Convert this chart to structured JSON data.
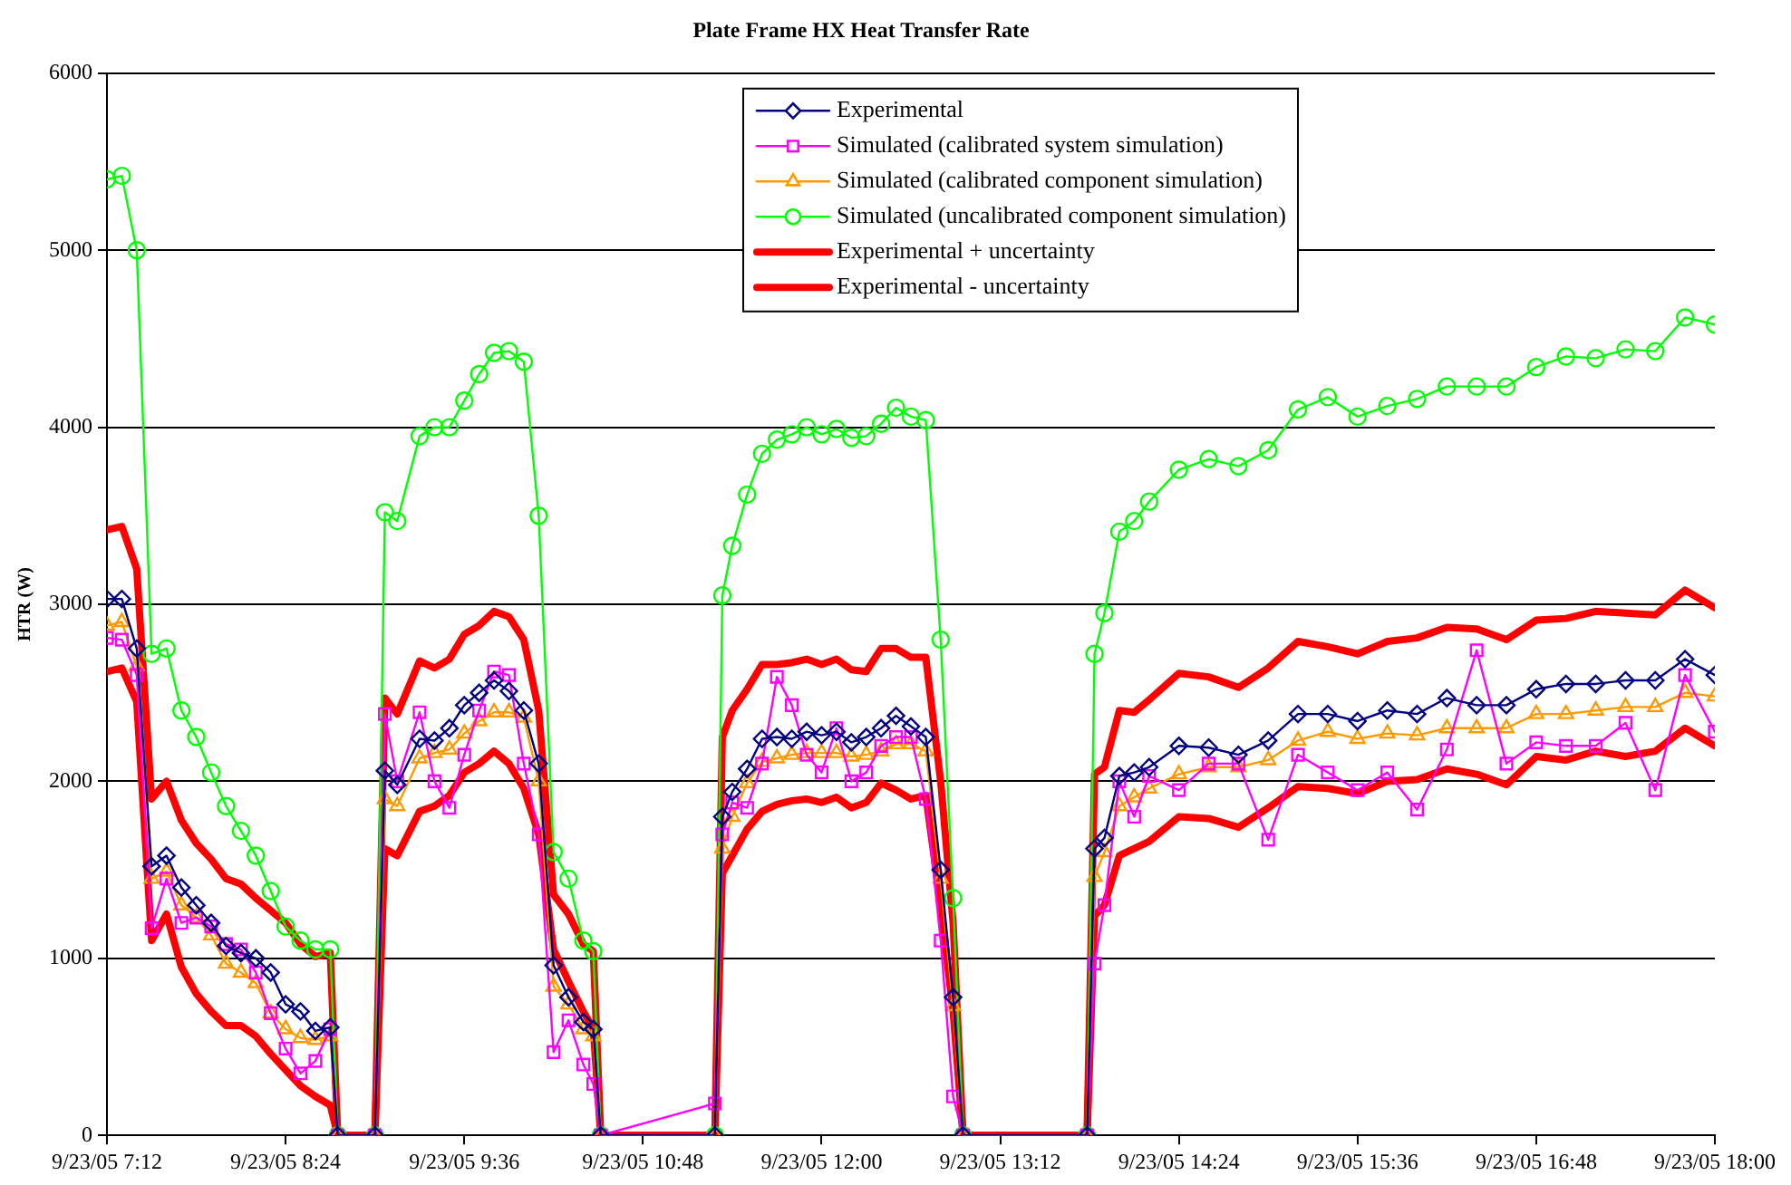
{
  "chart_data": {
    "type": "line",
    "title": "Plate Frame HX Heat Transfer Rate",
    "ylabel": "HTR (W)",
    "x": [
      "--09-23T07:12",
      "--09-23T07:18",
      "--09-23T07:24",
      "--09-23T07:30",
      "--09-23T07:36",
      "--09-23T07:42",
      "--09-23T07:48",
      "--09-23T07:54",
      "--09-23T08:00",
      "--09-23T08:06",
      "--09-23T08:12",
      "--09-23T08:18",
      "--09-23T08:24",
      "--09-23T08:30",
      "--09-23T08:36",
      "--09-23T08:42",
      "--09-23T08:45",
      "--09-23T09:00",
      "--09-23T09:04",
      "--09-23T09:09",
      "--09-23T09:18",
      "--09-23T09:24",
      "--09-23T09:30",
      "--09-23T09:36",
      "--09-23T09:42",
      "--09-23T09:48",
      "--09-23T09:54",
      "--09-23T10:00",
      "--09-23T10:06",
      "--09-23T10:12",
      "--09-23T10:18",
      "--09-23T10:24",
      "--09-23T10:28",
      "--09-23T10:31",
      "--09-23T11:17",
      "--09-23T11:20",
      "--09-23T11:24",
      "--09-23T11:30",
      "--09-23T11:36",
      "--09-23T11:42",
      "--09-23T11:48",
      "--09-23T11:54",
      "--09-23T12:00",
      "--09-23T12:06",
      "--09-23T12:12",
      "--09-23T12:18",
      "--09-23T12:24",
      "--09-23T12:30",
      "--09-23T12:36",
      "--09-23T12:42",
      "--09-23T12:48",
      "--09-23T12:53",
      "--09-23T12:57",
      "--09-23T13:47",
      "--09-23T13:50",
      "--09-23T13:54",
      "--09-23T14:00",
      "--09-23T14:06",
      "--09-23T14:12",
      "--09-23T14:24",
      "--09-23T14:36",
      "--09-23T14:48",
      "--09-23T15:00",
      "--09-23T15:12",
      "--09-23T15:24",
      "--09-23T15:36",
      "--09-23T15:48",
      "--09-23T16:00",
      "--09-23T16:12",
      "--09-23T16:24",
      "--09-23T16:36",
      "--09-23T16:48",
      "--09-23T17:00",
      "--09-23T17:12",
      "--09-23T17:24",
      "--09-23T17:36",
      "--09-23T17:48",
      "--09-23T18:00"
    ],
    "series": [
      {
        "name": "Experimental",
        "color": "#000080",
        "marker": "diamond",
        "values": [
          3030,
          3030,
          2750,
          1520,
          1580,
          1400,
          1300,
          1200,
          1070,
          1030,
          1000,
          920,
          740,
          700,
          590,
          610,
          0,
          0,
          2060,
          1980,
          2240,
          2230,
          2300,
          2430,
          2500,
          2570,
          2510,
          2400,
          2100,
          960,
          780,
          640,
          600,
          0,
          0,
          1800,
          1940,
          2070,
          2240,
          2250,
          2240,
          2280,
          2260,
          2280,
          2220,
          2250,
          2300,
          2370,
          2310,
          2250,
          1500,
          780,
          0,
          0,
          1620,
          1680,
          2030,
          2050,
          2080,
          2200,
          2190,
          2150,
          2230,
          2380,
          2380,
          2340,
          2400,
          2380,
          2470,
          2430,
          2430,
          2520,
          2550,
          2550,
          2570,
          2570,
          2690,
          2600
        ]
      },
      {
        "name": "Simulated (calibrated system simulation)",
        "color": "#ff00ff",
        "marker": "square",
        "values": [
          2810,
          2800,
          2600,
          1170,
          1450,
          1200,
          1230,
          1180,
          1080,
          1050,
          920,
          690,
          490,
          350,
          420,
          600,
          0,
          0,
          2380,
          2000,
          2390,
          2000,
          1850,
          2150,
          2400,
          2620,
          2600,
          2100,
          1700,
          470,
          650,
          400,
          290,
          0,
          180,
          1700,
          1880,
          1850,
          2100,
          2590,
          2430,
          2150,
          2050,
          2300,
          2000,
          2050,
          2200,
          2250,
          2250,
          1900,
          1100,
          220,
          0,
          0,
          970,
          1300,
          2000,
          1800,
          2030,
          1950,
          2100,
          2100,
          1670,
          2150,
          2050,
          1950,
          2050,
          1840,
          2180,
          2740,
          2100,
          2220,
          2200,
          2200,
          2330,
          1950,
          2600,
          2280
        ]
      },
      {
        "name": "Simulated (calibrated component simulation)",
        "color": "#ff9900",
        "marker": "triangle",
        "values": [
          2880,
          2900,
          2650,
          1450,
          1490,
          1300,
          1230,
          1130,
          970,
          920,
          860,
          690,
          600,
          550,
          540,
          560,
          0,
          0,
          1900,
          1860,
          2130,
          2160,
          2180,
          2270,
          2340,
          2390,
          2390,
          2360,
          2000,
          840,
          740,
          600,
          560,
          0,
          0,
          1620,
          1800,
          1990,
          2110,
          2130,
          2150,
          2160,
          2160,
          2160,
          2140,
          2150,
          2170,
          2210,
          2210,
          2170,
          1450,
          730,
          0,
          0,
          1460,
          1600,
          1860,
          1910,
          1960,
          2040,
          2080,
          2080,
          2120,
          2230,
          2280,
          2240,
          2270,
          2260,
          2300,
          2300,
          2300,
          2380,
          2380,
          2400,
          2420,
          2420,
          2500,
          2480
        ]
      },
      {
        "name": "Simulated (uncalibrated component simulation)",
        "color": "#00ff00",
        "marker": "circle",
        "values": [
          5400,
          5420,
          5000,
          2720,
          2750,
          2400,
          2250,
          2050,
          1860,
          1720,
          1580,
          1380,
          1180,
          1100,
          1050,
          1050,
          0,
          0,
          3520,
          3470,
          3950,
          4000,
          4000,
          4150,
          4300,
          4420,
          4430,
          4370,
          3500,
          1600,
          1450,
          1100,
          1040,
          0,
          0,
          3050,
          3330,
          3620,
          3850,
          3930,
          3960,
          4000,
          3960,
          3990,
          3940,
          3950,
          4020,
          4110,
          4060,
          4040,
          2800,
          1340,
          0,
          0,
          2720,
          2950,
          3410,
          3470,
          3580,
          3760,
          3820,
          3780,
          3870,
          4100,
          4170,
          4060,
          4120,
          4160,
          4230,
          4230,
          4230,
          4340,
          4400,
          4390,
          4440,
          4430,
          4620,
          4580
        ]
      },
      {
        "name": "Experimental + uncertainty",
        "color": "#ff0000",
        "marker": "none",
        "values": [
          3420,
          3440,
          3200,
          1900,
          2000,
          1780,
          1650,
          1560,
          1450,
          1420,
          1340,
          1270,
          1200,
          1080,
          1010,
          1030,
          0,
          0,
          2470,
          2380,
          2680,
          2640,
          2690,
          2830,
          2880,
          2960,
          2930,
          2800,
          2400,
          1360,
          1250,
          1080,
          1040,
          0,
          0,
          2250,
          2400,
          2520,
          2660,
          2660,
          2670,
          2690,
          2660,
          2690,
          2630,
          2620,
          2750,
          2750,
          2700,
          2700,
          2000,
          1200,
          0,
          0,
          2040,
          2080,
          2400,
          2390,
          2460,
          2610,
          2590,
          2530,
          2640,
          2790,
          2760,
          2720,
          2790,
          2810,
          2870,
          2860,
          2800,
          2910,
          2920,
          2960,
          2950,
          2940,
          3080,
          2980
        ]
      },
      {
        "name": "Experimental - uncertainty",
        "color": "#ff0000",
        "marker": "none",
        "values": [
          2620,
          2640,
          2450,
          1100,
          1250,
          950,
          800,
          700,
          620,
          620,
          560,
          460,
          370,
          280,
          220,
          170,
          0,
          0,
          1620,
          1580,
          1830,
          1860,
          1920,
          2050,
          2100,
          2170,
          2100,
          1960,
          1700,
          1050,
          870,
          700,
          600,
          0,
          0,
          1480,
          1580,
          1730,
          1830,
          1870,
          1890,
          1900,
          1880,
          1910,
          1850,
          1880,
          1990,
          1950,
          1900,
          1920,
          1300,
          700,
          0,
          0,
          1240,
          1300,
          1580,
          1620,
          1660,
          1800,
          1790,
          1740,
          1850,
          1970,
          1960,
          1930,
          2000,
          2010,
          2070,
          2040,
          1980,
          2140,
          2120,
          2170,
          2140,
          2170,
          2300,
          2200
        ]
      }
    ],
    "xlim": [
      "--09-23T07:12",
      "--09-23T18:00"
    ],
    "xticks": [
      {
        "value": "--09-23T07:12",
        "label": "9/23/05 7:12"
      },
      {
        "value": "--09-23T08:24",
        "label": "9/23/05 8:24"
      },
      {
        "value": "--09-23T09:36",
        "label": "9/23/05 9:36"
      },
      {
        "value": "--09-23T10:48",
        "label": "9/23/05 10:48"
      },
      {
        "value": "--09-23T12:00",
        "label": "9/23/05 12:00"
      },
      {
        "value": "--09-23T13:12",
        "label": "9/23/05 13:12"
      },
      {
        "value": "--09-23T14:24",
        "label": "9/23/05 14:24"
      },
      {
        "value": "--09-23T15:36",
        "label": "9/23/05 15:36"
      },
      {
        "value": "--09-23T16:48",
        "label": "9/23/05 16:48"
      },
      {
        "value": "--09-23T18:00",
        "label": "9/23/05 18:00"
      }
    ],
    "ylim": [
      0,
      6000
    ],
    "yticks": [
      0,
      1000,
      2000,
      3000,
      4000,
      5000,
      6000
    ],
    "grid": "y",
    "legend": "top",
    "line_style": "solid"
  }
}
